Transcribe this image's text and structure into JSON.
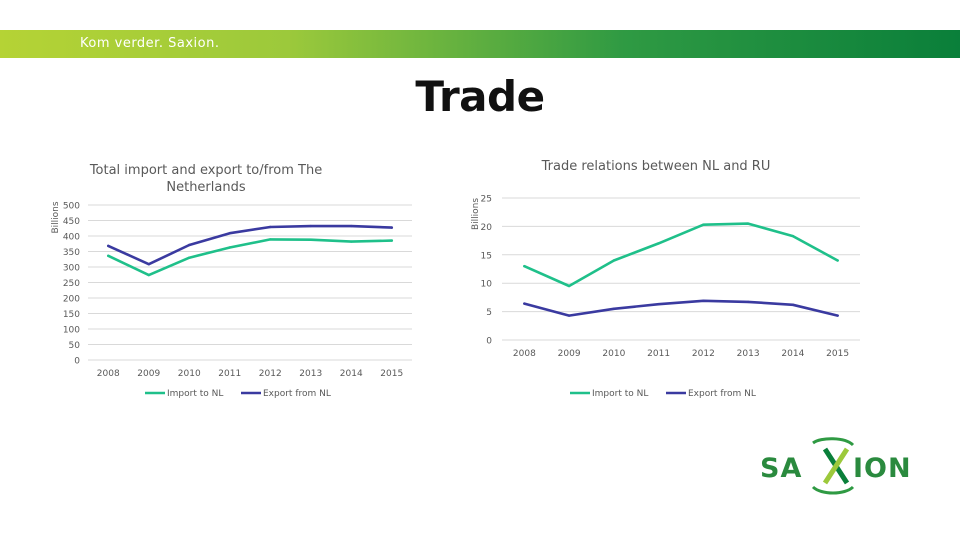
{
  "header": {
    "tagline": "Kom verder. Saxion."
  },
  "page": {
    "title": "Trade"
  },
  "colors": {
    "import": "#1fc08a",
    "export": "#3a3aa0",
    "grid": "#d9d9d9",
    "text": "#595959"
  },
  "logo": {
    "text": "SAXION"
  },
  "chart_data": [
    {
      "type": "line",
      "title_lines": [
        "Total import and export to/from The",
        "Netherlands"
      ],
      "ylabel": "Billions",
      "xlabel": "",
      "ylim": [
        0,
        500
      ],
      "yticks": [
        0,
        50,
        100,
        150,
        200,
        250,
        300,
        350,
        400,
        450,
        500
      ],
      "categories": [
        "2008",
        "2009",
        "2010",
        "2011",
        "2012",
        "2013",
        "2014",
        "2015"
      ],
      "series": [
        {
          "name": "Import to NL",
          "color": "#1fc08a",
          "values": [
            336,
            274,
            330,
            363,
            389,
            388,
            382,
            385
          ]
        },
        {
          "name": "Export from NL",
          "color": "#3a3aa0",
          "values": [
            368,
            309,
            371,
            409,
            429,
            432,
            432,
            427
          ]
        }
      ],
      "grid": true,
      "legend": "bottom"
    },
    {
      "type": "line",
      "title_lines": [
        "Trade relations between NL and RU"
      ],
      "ylabel": "Billions",
      "xlabel": "",
      "ylim": [
        0,
        25
      ],
      "yticks": [
        0,
        5,
        10,
        15,
        20,
        25
      ],
      "categories": [
        "2008",
        "2009",
        "2010",
        "2011",
        "2012",
        "2013",
        "2014",
        "2015"
      ],
      "series": [
        {
          "name": "Import to NL",
          "color": "#1fc08a",
          "values": [
            13,
            9.5,
            14,
            17,
            20.3,
            20.5,
            18.3,
            14
          ]
        },
        {
          "name": "Export from NL",
          "color": "#3a3aa0",
          "values": [
            6.4,
            4.3,
            5.5,
            6.3,
            6.9,
            6.7,
            6.2,
            4.3
          ]
        }
      ],
      "grid": true,
      "legend": "bottom"
    }
  ]
}
